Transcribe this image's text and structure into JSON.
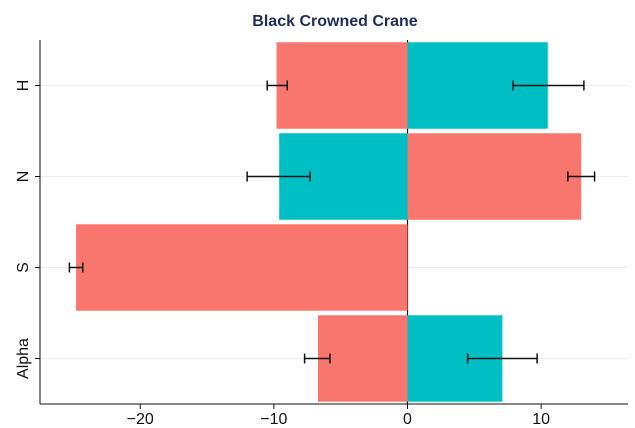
{
  "chart_data": {
    "type": "bar",
    "orientation": "horizontal",
    "stacked": false,
    "title": "Black Crowned Crane",
    "xlabel": "",
    "ylabel": "",
    "categories": [
      "H",
      "N",
      "S",
      "Alpha"
    ],
    "xlim": [
      -27.5,
      16.5
    ],
    "xticks": [
      -20,
      -10,
      0,
      10
    ],
    "xtick_labels": [
      "−20",
      "−10",
      "0",
      "10"
    ],
    "grid": true,
    "legend": "none",
    "colors": {
      "red": "#f8766d",
      "teal": "#00bfc4"
    },
    "series": [
      {
        "values": [
          -9.8,
          13.0,
          -24.8,
          -6.7
        ],
        "error_low": [
          -10.5,
          12.0,
          -25.3,
          -7.7
        ],
        "error_high": [
          -9.0,
          14.0,
          -24.3,
          -5.8
        ],
        "colors": [
          "#f8766d",
          "#f8766d",
          "#f8766d",
          "#f8766d"
        ]
      },
      {
        "values": [
          10.5,
          -9.6,
          null,
          7.1
        ],
        "error_low": [
          7.9,
          -12.0,
          null,
          4.5
        ],
        "error_high": [
          13.2,
          -7.3,
          null,
          9.7
        ],
        "colors": [
          "#00bfc4",
          "#00bfc4",
          null,
          "#00bfc4"
        ]
      }
    ]
  }
}
